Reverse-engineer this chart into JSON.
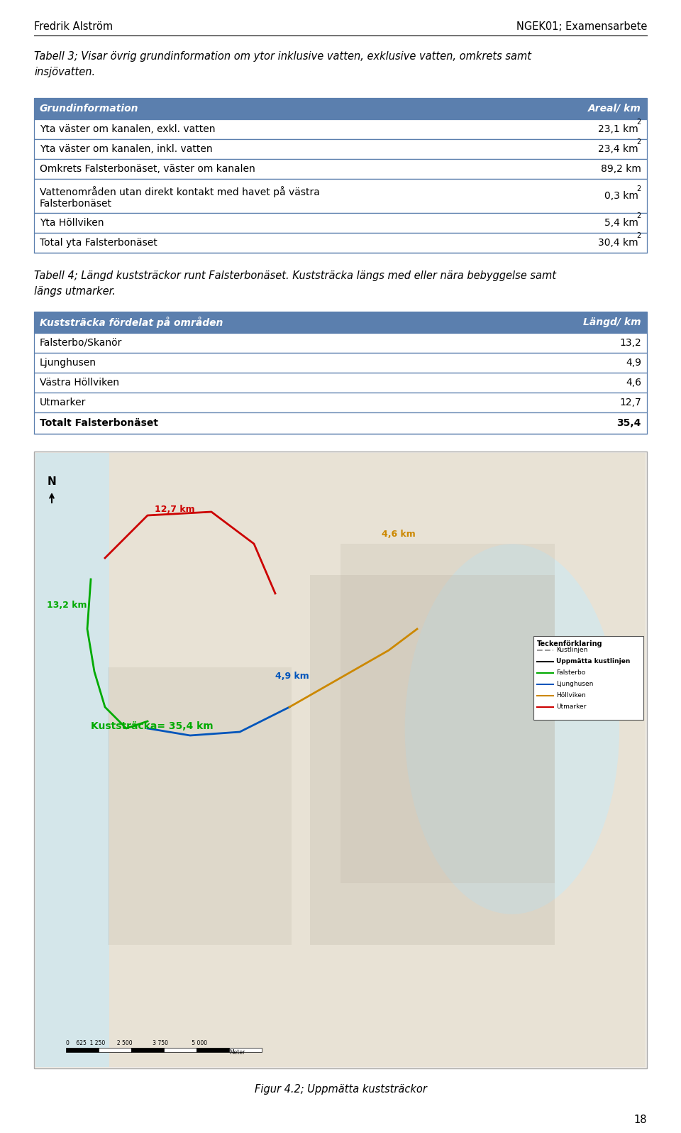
{
  "page_width": 9.6,
  "page_height": 15.96,
  "bg_color": "#ffffff",
  "header_left": "Fredrik Alström",
  "header_right": "NGEK01; Examensarbete",
  "caption1": "Tabell 3; Visar övrig grundinformation om ytor inklusive vatten, exklusive vatten, omkrets samt\ninsjövatten.",
  "table1_header": [
    "Grundinformation",
    "Areal/ km"
  ],
  "table1_header_bg": "#5b7fae",
  "table1_header_color": "#ffffff",
  "table1_rows": [
    [
      "Yta väster om kanalen, exkl. vatten",
      "23,1 km²"
    ],
    [
      "Yta väster om kanalen, inkl. vatten",
      "23,4 km²"
    ],
    [
      "Omkrets Falsterbonäset, väster om kanalen",
      "89,2 km"
    ],
    [
      "Vattenområden utan direkt kontakt med havet på västra\nFalsterbonäset",
      "0,3 km²"
    ],
    [
      "Yta Höllviken",
      "5,4 km²"
    ],
    [
      "Total yta Falsterbonäset",
      "30,4 km²"
    ]
  ],
  "table1_border_color": "#5b7fae",
  "caption2": "Tabell 4; Längd kuststräckor runt Falsterbonäset. Kuststräcka längs med eller nära bebyggelse samt\nlängs utmarker.",
  "table2_header": [
    "Kuststräcka fördelat på områden",
    "Längd/ km"
  ],
  "table2_header_bg": "#5b7fae",
  "table2_header_color": "#ffffff",
  "table2_rows": [
    [
      "Falsterbo/Skanör",
      "13,2"
    ],
    [
      "Ljunghusen",
      "4,9"
    ],
    [
      "Västra Höllviken",
      "4,6"
    ],
    [
      "Utmarker",
      "12,7"
    ],
    [
      "Totalt Falsterbonäset",
      "35,4"
    ]
  ],
  "fig_caption": "Figur 4.2; Uppmätta kuststräckor",
  "page_number": "18",
  "map_label_red": "12,7 km",
  "map_label_orange": "4,6 km",
  "map_label_green1": "13,2 km",
  "map_label_blue": "4,9 km",
  "map_label_total": "Kuststräcka= 35,4 km",
  "map_color_red": "#cc0000",
  "map_color_orange": "#cc8800",
  "map_color_green": "#00aa00",
  "map_color_blue": "#0055bb",
  "legend_items": [
    [
      "Kustlinjen",
      "#999999",
      "dashed"
    ],
    [
      "Uppmätta kustlinjen",
      "#000000",
      "solid"
    ],
    [
      "Falsterbo",
      "#00aa00",
      "solid"
    ],
    [
      "Ljunghusen",
      "#0055bb",
      "solid"
    ],
    [
      "Höllviken",
      "#cc8800",
      "solid"
    ],
    [
      "Utmarker",
      "#cc0000",
      "solid"
    ]
  ]
}
